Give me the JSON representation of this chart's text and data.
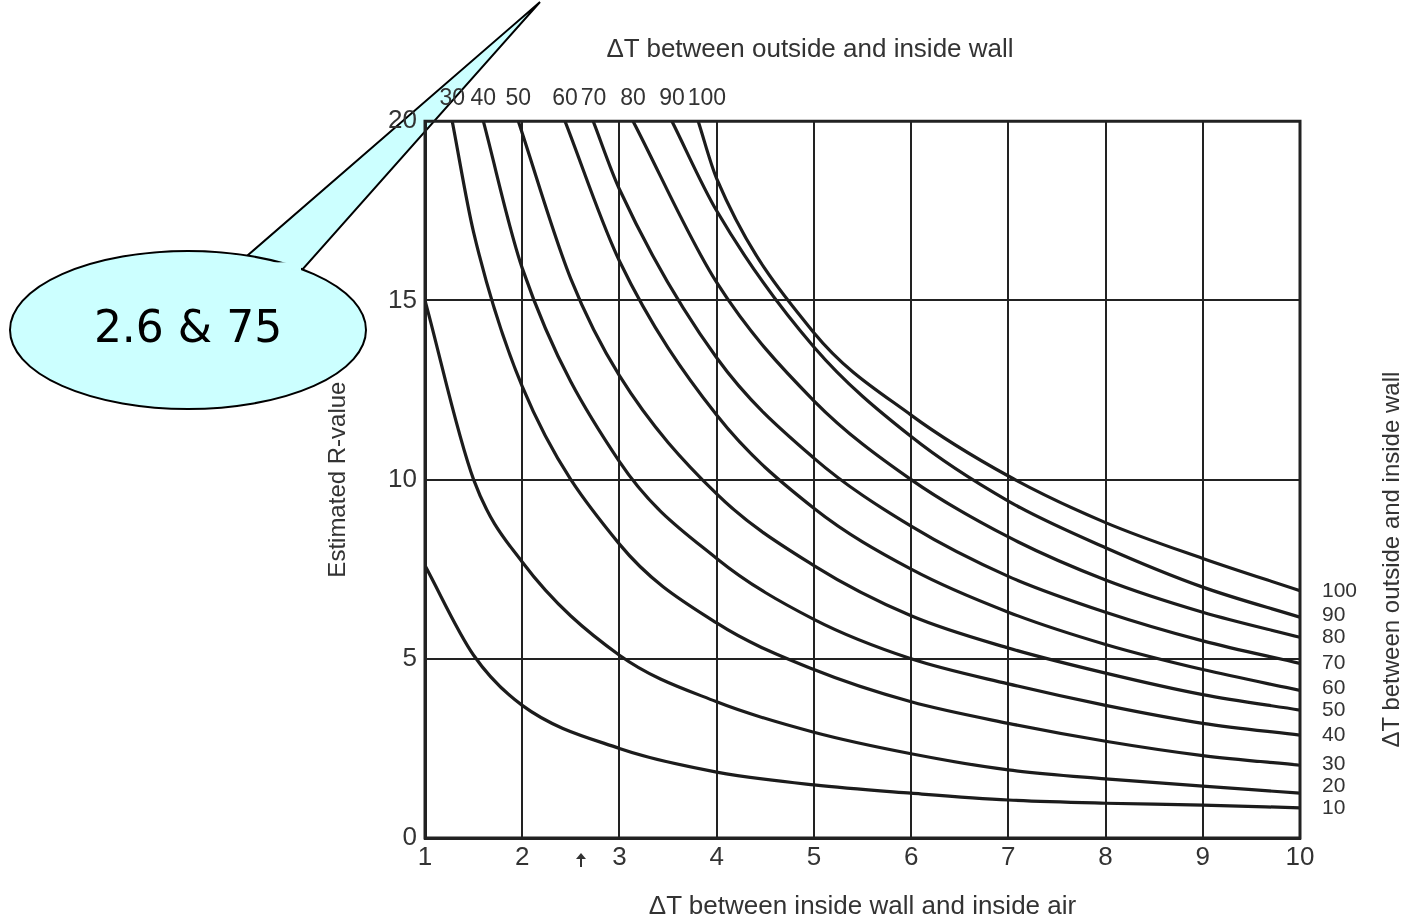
{
  "chart_data": {
    "type": "line",
    "title": "ΔT between outside and inside wall",
    "xlabel": "ΔT between inside wall and inside air",
    "ylabel": "Estimated R-value",
    "y2label": "ΔT between outside and inside wall",
    "xlim": [
      1,
      10
    ],
    "xticks": [
      1,
      2,
      3,
      4,
      5,
      6,
      7,
      8,
      9,
      10
    ],
    "ylim": [
      0,
      20
    ],
    "yticks": [
      0,
      5,
      10,
      15,
      20
    ],
    "grid": true,
    "annotations": [
      "2.6 & 75"
    ],
    "series": [
      {
        "name": "10",
        "color": "#1c1c1c",
        "x": [
          1,
          1.5,
          2,
          3,
          4,
          5,
          6,
          7,
          8,
          9,
          10
        ],
        "values": [
          7.6,
          5.1,
          3.7,
          2.5,
          1.84,
          1.48,
          1.25,
          1.06,
          0.97,
          0.92,
          0.84
        ]
      },
      {
        "name": "20",
        "color": "#1c1c1c",
        "x": [
          1,
          1.5,
          2,
          3,
          4,
          5,
          6,
          7,
          8,
          9,
          10
        ],
        "values": [
          15,
          10,
          7.7,
          5.1,
          3.8,
          2.95,
          2.35,
          1.9,
          1.65,
          1.45,
          1.25
        ]
      },
      {
        "name": "30",
        "color": "#1c1c1c",
        "x": [
          1.28,
          1.5,
          2,
          3,
          4,
          5,
          6,
          7,
          8,
          9,
          10
        ],
        "values": [
          20,
          16.9,
          12.6,
          8.2,
          6.0,
          4.7,
          3.8,
          3.2,
          2.7,
          2.3,
          2.03
        ]
      },
      {
        "name": "40",
        "color": "#1c1c1c",
        "x": [
          1.6,
          2,
          3,
          4,
          5,
          6,
          7,
          8,
          9,
          10
        ],
        "values": [
          20,
          15.9,
          10.5,
          7.8,
          6.1,
          5.0,
          4.3,
          3.7,
          3.2,
          2.87
        ]
      },
      {
        "name": "50",
        "color": "#1c1c1c",
        "x": [
          1.96,
          2.5,
          3,
          4,
          5,
          6,
          7,
          8,
          9,
          10
        ],
        "values": [
          20,
          15.6,
          12.9,
          9.6,
          7.6,
          6.2,
          5.3,
          4.6,
          4.0,
          3.57
        ]
      },
      {
        "name": "60",
        "color": "#1c1c1c",
        "x": [
          2.44,
          3,
          4,
          5,
          6,
          7,
          8,
          9,
          10
        ],
        "values": [
          20,
          16.1,
          11.8,
          9.2,
          7.5,
          6.3,
          5.4,
          4.7,
          4.12
        ]
      },
      {
        "name": "70",
        "color": "#1c1c1c",
        "x": [
          2.73,
          3,
          4,
          5,
          6,
          7,
          8,
          9,
          10
        ],
        "values": [
          20,
          18.1,
          13.4,
          10.6,
          8.7,
          7.3,
          6.3,
          5.5,
          4.87
        ]
      },
      {
        "name": "80",
        "color": "#1c1c1c",
        "x": [
          3.14,
          4,
          5,
          6,
          7,
          8,
          9,
          10
        ],
        "values": [
          20,
          15.5,
          12.2,
          10.0,
          8.4,
          7.2,
          6.3,
          5.6
        ]
      },
      {
        "name": "90",
        "color": "#1c1c1c",
        "x": [
          3.54,
          4,
          5,
          6,
          7,
          8,
          9,
          10
        ],
        "values": [
          20,
          17.5,
          13.7,
          11.2,
          9.4,
          8.1,
          7.0,
          6.16
        ]
      },
      {
        "name": "100",
        "color": "#1c1c1c",
        "x": [
          3.81,
          4,
          5,
          6,
          7,
          8,
          9,
          10
        ],
        "values": [
          20,
          18.4,
          14.1,
          11.8,
          10.1,
          8.8,
          7.8,
          6.9
        ]
      }
    ]
  }
}
